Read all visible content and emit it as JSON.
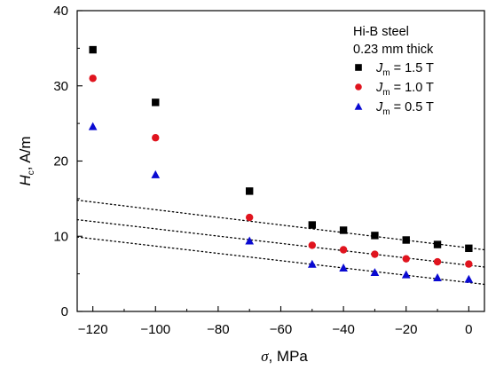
{
  "chart_data": {
    "type": "scatter",
    "xlabel": {
      "symbol": "σ",
      "unit": ", MPa"
    },
    "ylabel": {
      "symbol": "H",
      "subscript": "c",
      "unit": ", A/m"
    },
    "xlim": [
      -125,
      5
    ],
    "ylim": [
      0,
      40
    ],
    "xticks": [
      -120,
      -100,
      -80,
      -60,
      -40,
      -20,
      0
    ],
    "yticks": [
      0,
      10,
      20,
      30,
      40
    ],
    "grid": false,
    "legend_position": "top-right",
    "annotation": [
      "Hi-B steel",
      "0.23 mm thick"
    ],
    "series": [
      {
        "legend": {
          "symbol": "J",
          "subscript": "m",
          "value": " = 1.5 T"
        },
        "marker": "square",
        "color": "#000000",
        "x": [
          -120,
          -100,
          -70,
          -50,
          -40,
          -30,
          -20,
          -10,
          0
        ],
        "y": [
          34.8,
          27.8,
          16.0,
          11.5,
          10.8,
          10.1,
          9.5,
          8.9,
          8.4
        ],
        "fit": {
          "x": [
            -125,
            5
          ],
          "y": [
            14.8,
            8.2
          ]
        }
      },
      {
        "legend": {
          "symbol": "J",
          "subscript": "m",
          "value": " = 1.0 T"
        },
        "marker": "circle",
        "color": "#e0141e",
        "x": [
          -120,
          -100,
          -70,
          -50,
          -40,
          -30,
          -20,
          -10,
          0
        ],
        "y": [
          31.0,
          23.1,
          12.5,
          8.8,
          8.2,
          7.6,
          7.0,
          6.6,
          6.3
        ],
        "fit": {
          "x": [
            -125,
            5
          ],
          "y": [
            12.2,
            5.9
          ]
        }
      },
      {
        "legend": {
          "symbol": "J",
          "subscript": "m",
          "value": " = 0.5 T"
        },
        "marker": "triangle",
        "color": "#0a0ad2",
        "x": [
          -120,
          -100,
          -70,
          -50,
          -40,
          -30,
          -20,
          -10,
          0
        ],
        "y": [
          24.6,
          18.2,
          9.4,
          6.3,
          5.8,
          5.2,
          4.9,
          4.5,
          4.3
        ],
        "fit": {
          "x": [
            -125,
            5
          ],
          "y": [
            9.9,
            3.6
          ]
        }
      }
    ]
  }
}
